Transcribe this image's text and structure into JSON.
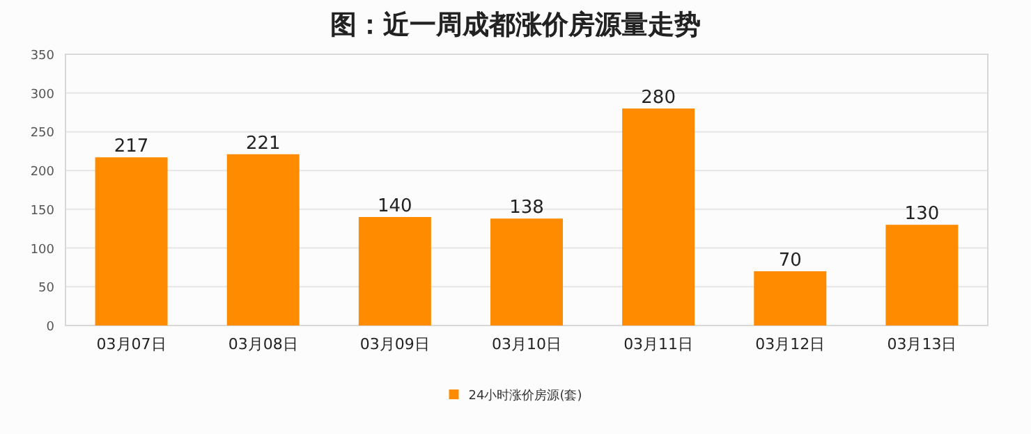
{
  "chart_data": {
    "type": "bar",
    "title": "图：近一周成都涨价房源量走势",
    "categories": [
      "03月07日",
      "03月08日",
      "03月09日",
      "03月10日",
      "03月11日",
      "03月12日",
      "03月13日"
    ],
    "series": [
      {
        "name": "24小时涨价房源(套)",
        "color": "#ff8c00",
        "values": [
          217,
          221,
          140,
          138,
          280,
          70,
          130
        ]
      }
    ],
    "ylim": [
      0,
      350
    ],
    "yticks": [
      0,
      50,
      100,
      150,
      200,
      250,
      300,
      350
    ],
    "grid": "y",
    "data_labels": true,
    "legend": "bottom"
  }
}
